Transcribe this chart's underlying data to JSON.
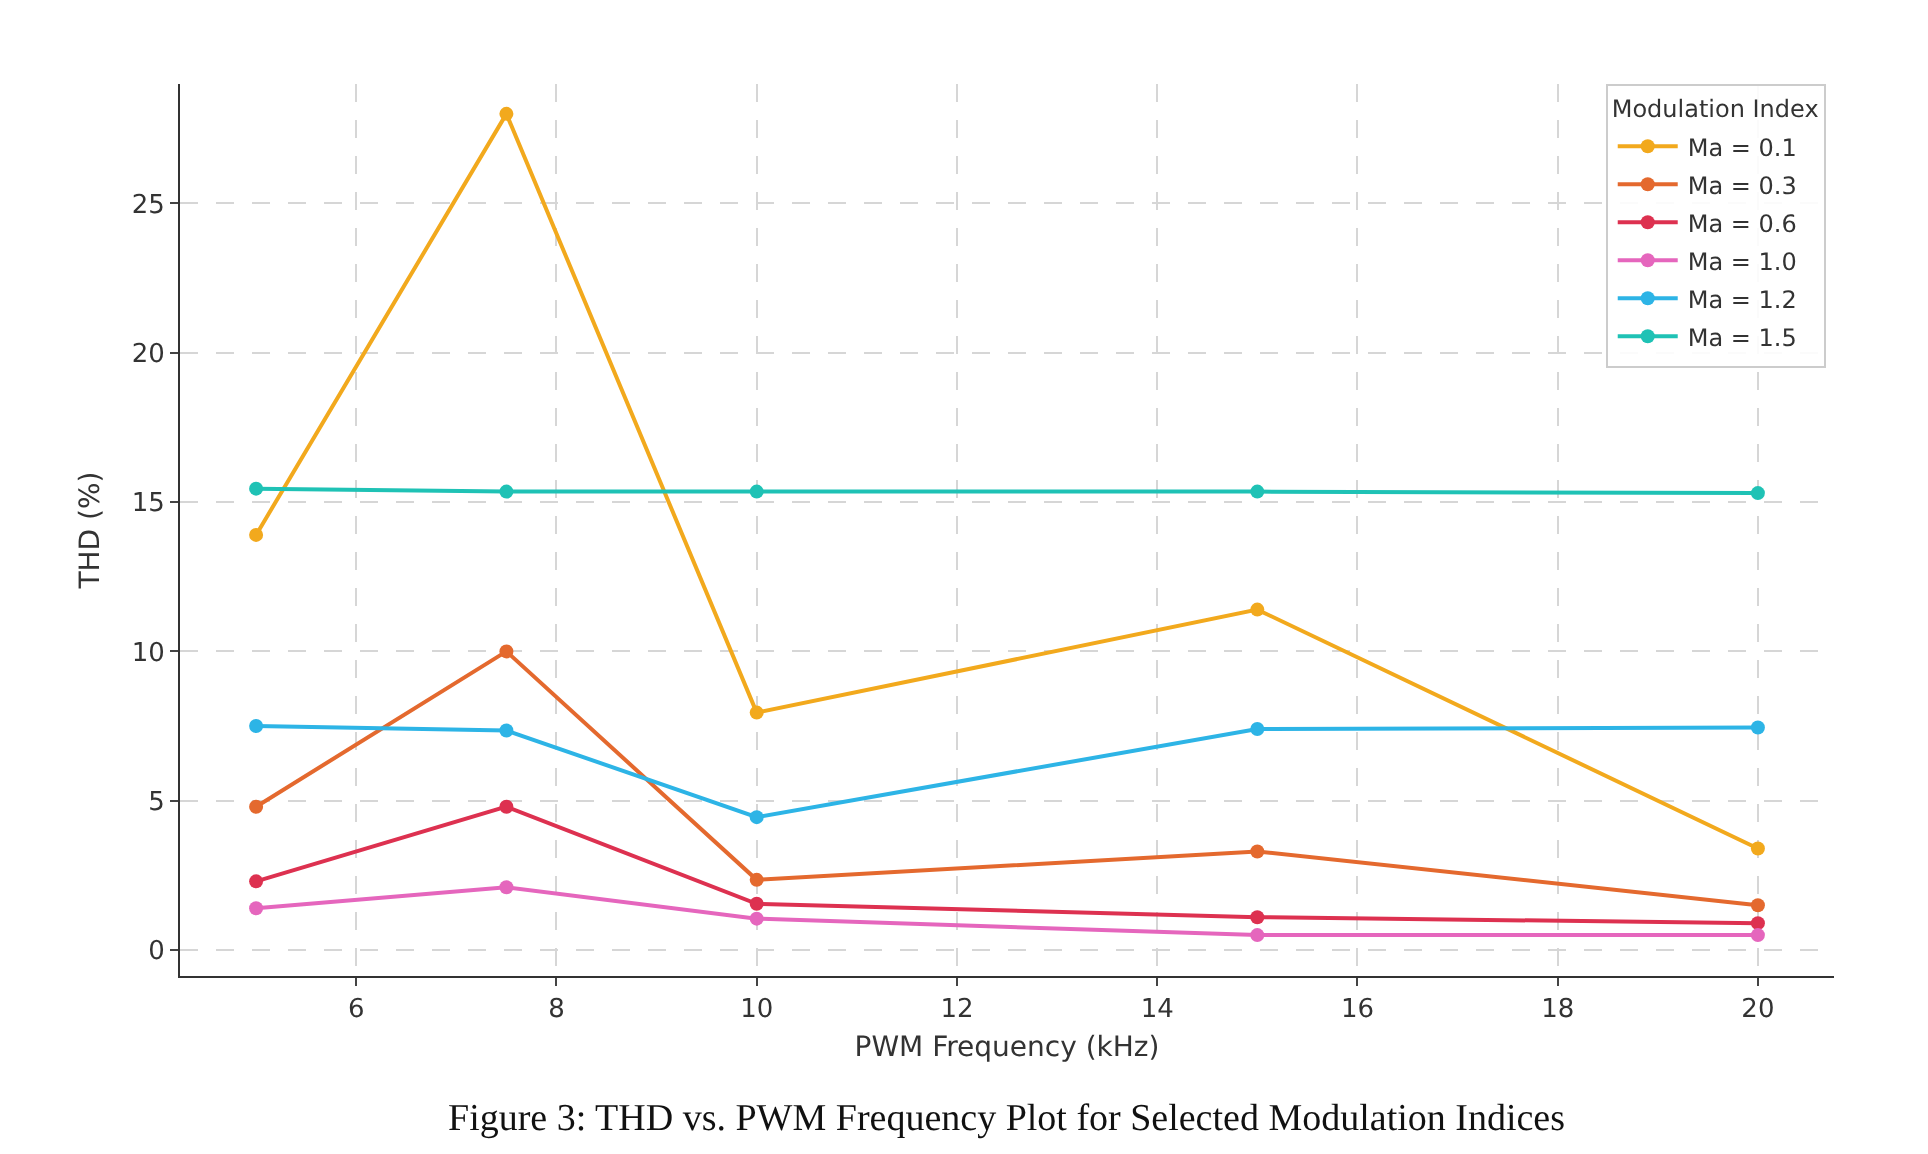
{
  "chart_data": {
    "type": "line",
    "xlabel": "PWM Frequency (kHz)",
    "ylabel": "THD (%)",
    "legend_title": "Modulation Index",
    "x": [
      5,
      7.5,
      10,
      15,
      20
    ],
    "series": [
      {
        "name": "Ma = 0.1",
        "color": "#f2a91d",
        "values": [
          13.9,
          28.0,
          7.95,
          11.4,
          3.4
        ]
      },
      {
        "name": "Ma = 0.3",
        "color": "#e4692e",
        "values": [
          4.8,
          10.0,
          2.35,
          3.3,
          1.5
        ]
      },
      {
        "name": "Ma = 0.6",
        "color": "#dd3150",
        "values": [
          2.3,
          4.8,
          1.55,
          1.1,
          0.9
        ]
      },
      {
        "name": "Ma = 1.0",
        "color": "#e566bd",
        "values": [
          1.4,
          2.1,
          1.05,
          0.5,
          0.5
        ]
      },
      {
        "name": "Ma = 1.2",
        "color": "#2db4e6",
        "values": [
          7.5,
          7.35,
          4.45,
          7.4,
          7.45
        ]
      },
      {
        "name": "Ma = 1.5",
        "color": "#1fc2b5",
        "values": [
          15.45,
          15.35,
          15.35,
          15.35,
          15.3
        ]
      }
    ],
    "xlim": [
      4.24,
      20.76
    ],
    "ylim": [
      -0.87,
      29.0
    ],
    "xticks": [
      6,
      8,
      10,
      12,
      14,
      16,
      18,
      20
    ],
    "yticks": [
      0,
      5,
      10,
      15,
      20,
      25
    ],
    "grid": true,
    "legend": "top right",
    "marker": "circle",
    "line_style": "solid",
    "annotations": [
      "Figure 3: THD vs. PWM Frequency Plot for Selected Modulation Indices"
    ]
  }
}
